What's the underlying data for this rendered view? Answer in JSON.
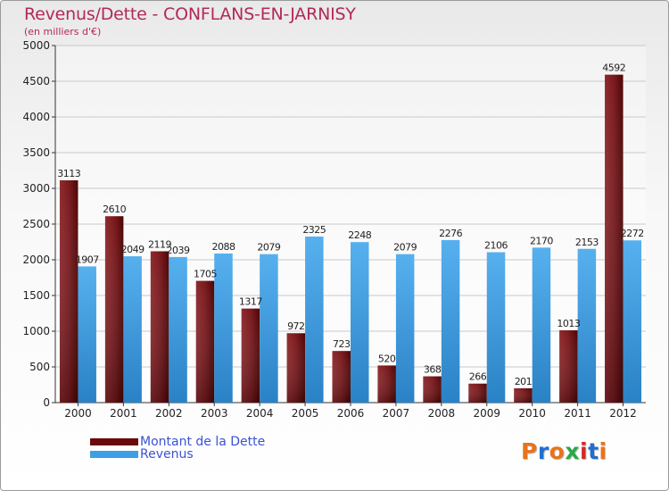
{
  "header": {
    "title": "Revenus/Dette - CONFLANS-EN-JARNISY",
    "subtitle": "(en milliers d'€)"
  },
  "legend": {
    "items": [
      {
        "label": "Montant de la Dette",
        "color": "#6b0a0a"
      },
      {
        "label": "Revenus",
        "color": "#3d9fe6"
      }
    ]
  },
  "logo": {
    "text": "Proxiti",
    "colors": [
      "#e8731a",
      "#1e6fcf",
      "#e8731a",
      "#2da84a",
      "#d12a2a",
      "#1e6fcf",
      "#e8731a"
    ]
  },
  "chart_data": {
    "type": "bar",
    "title": "Revenus/Dette - CONFLANS-EN-JARNISY",
    "subtitle": "(en milliers d'€)",
    "categories": [
      "2000",
      "2001",
      "2002",
      "2003",
      "2004",
      "2005",
      "2006",
      "2007",
      "2008",
      "2009",
      "2010",
      "2011",
      "2012"
    ],
    "series": [
      {
        "name": "Montant de la Dette",
        "color": "#6b0a0a",
        "values": [
          3113,
          2610,
          2119,
          1705,
          1317,
          972,
          723,
          520,
          368,
          266,
          201,
          1013,
          4592
        ],
        "labels": [
          "3113",
          "2610",
          "2119",
          "1705",
          "1317",
          "972",
          "723",
          "520",
          "368",
          "266",
          "201",
          "1013",
          "4592"
        ]
      },
      {
        "name": "Revenus",
        "color": "#3d9fe6",
        "values": [
          1907,
          2049,
          2039,
          2088,
          2079,
          2325,
          2248,
          2079,
          2276,
          2106,
          2170,
          2153,
          2272
        ],
        "labels": [
          "1907",
          "2049",
          "2039",
          "2088",
          "2079",
          "2325",
          "2248",
          "2079",
          "2276",
          "2106",
          "2170",
          "2153",
          "2272"
        ]
      }
    ],
    "yticks": [
      "0",
      "500",
      "1000",
      "1500",
      "2000",
      "2500",
      "3000",
      "3500",
      "4000",
      "4500",
      "5000"
    ],
    "ylim": [
      0,
      5000
    ],
    "grid": true,
    "legend_position": "bottom-left"
  }
}
